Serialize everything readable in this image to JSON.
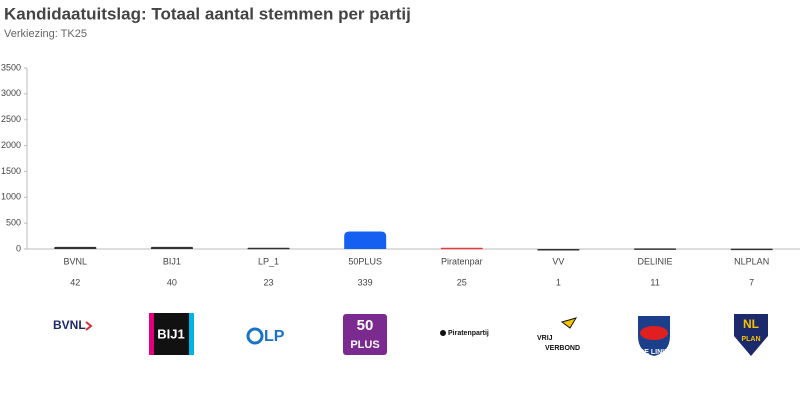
{
  "chart_data": {
    "type": "bar",
    "title": "Kandidaatuitslag: Totaal aantal stemmen per partij",
    "subtitle": "Verkiezing: TK25",
    "categories": [
      "BVNL",
      "BIJ1",
      "LP_1",
      "50PLUS",
      "Piratenpar",
      "VV",
      "DELINIE",
      "NLPLAN"
    ],
    "values": [
      42,
      40,
      23,
      339,
      25,
      1,
      11,
      7
    ],
    "colors": [
      "#333333",
      "#333333",
      "#333333",
      "#1560f0",
      "#e03a3a",
      "#333333",
      "#333333",
      "#333333"
    ],
    "ylim": [
      0,
      3500
    ],
    "yticks": [
      0,
      500,
      1000,
      1500,
      2000,
      2500,
      3000,
      3500
    ],
    "grid": false
  },
  "logos": [
    "BVNL",
    "BIJ1",
    "LP",
    "50",
    "PLUS",
    "Piratenpartij",
    "VRIJ",
    "VERBOND",
    "DE LINIE",
    "NL",
    "PLAN"
  ]
}
